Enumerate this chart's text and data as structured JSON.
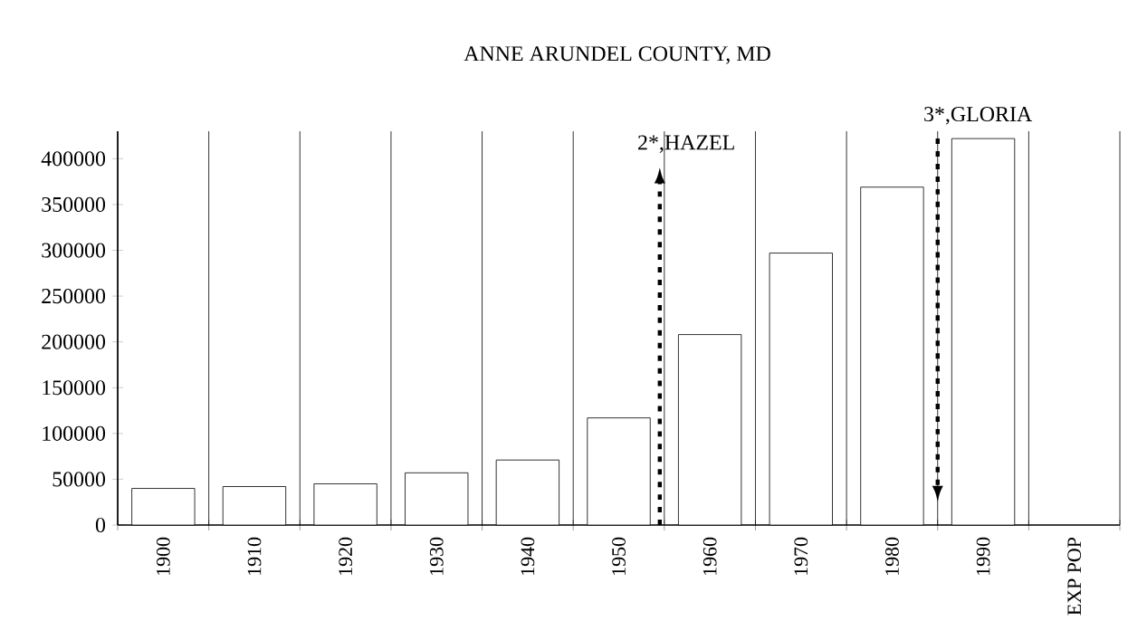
{
  "chart_data": {
    "type": "bar",
    "title": "ANNE ARUNDEL COUNTY, MD",
    "categories": [
      "1900",
      "1910",
      "1920",
      "1930",
      "1940",
      "1950",
      "1960",
      "1970",
      "1980",
      "1990",
      "EXP POP"
    ],
    "values": [
      40000,
      42000,
      45000,
      57000,
      71000,
      117000,
      208000,
      297000,
      369000,
      422000,
      null
    ],
    "color": "#ffffff",
    "ylim": [
      0,
      430000
    ],
    "yticks": [
      0,
      50000,
      100000,
      150000,
      200000,
      250000,
      300000,
      350000,
      400000
    ],
    "grid": "x",
    "annotations": [
      "2*,HAZEL",
      "3*,GLORIA"
    ]
  }
}
